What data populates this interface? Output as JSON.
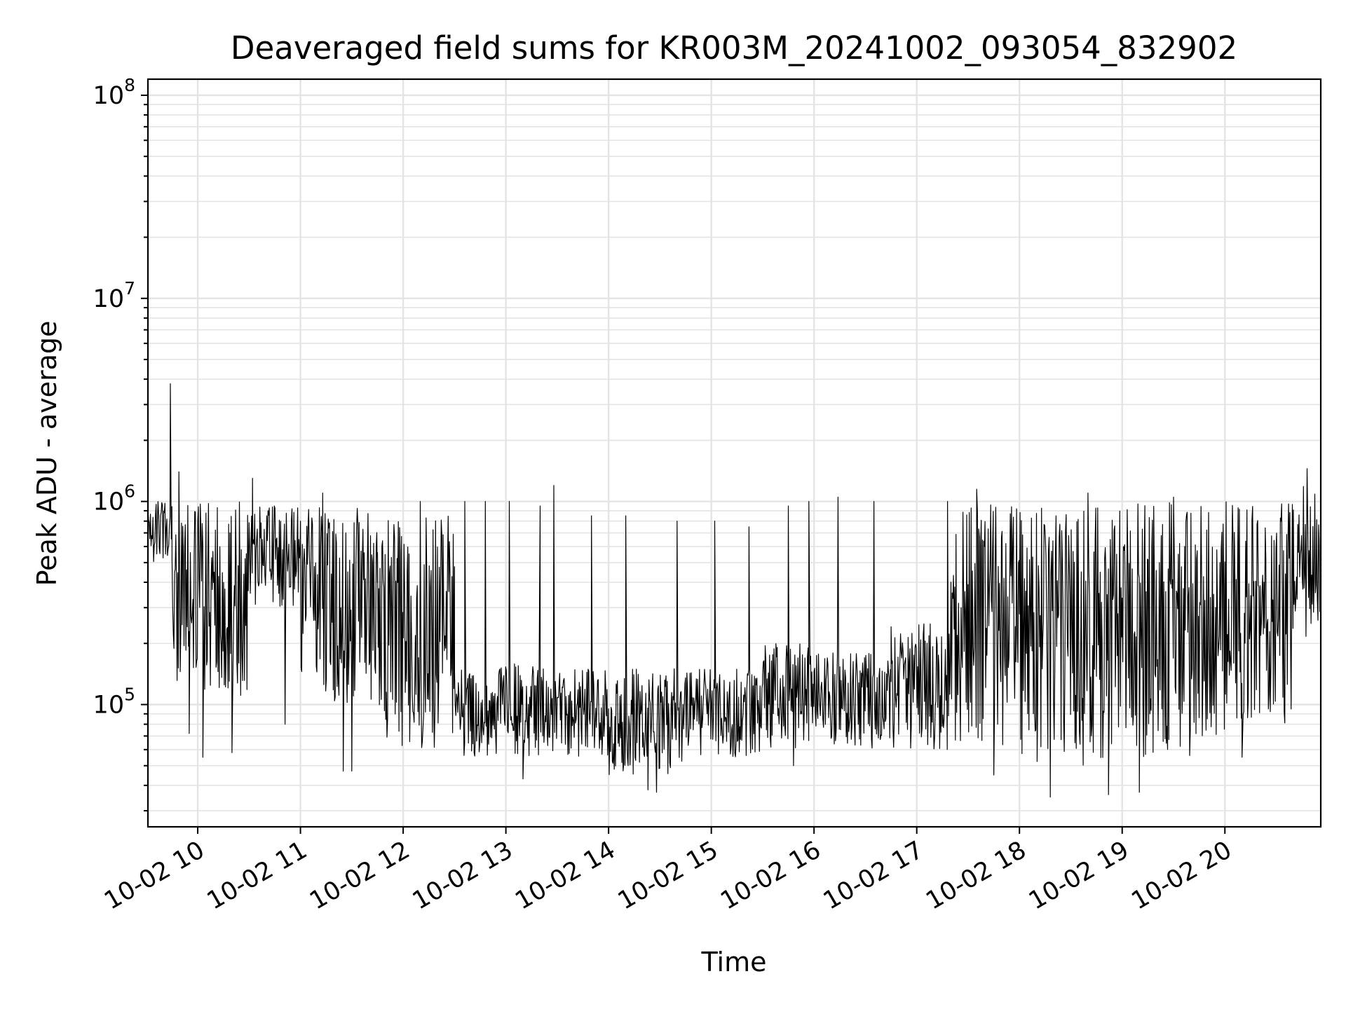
{
  "chart_data": {
    "type": "line",
    "title": "Deaveraged field sums for KR003M_20241002_093054_832902",
    "xlabel": "Time",
    "ylabel": "Peak ADU - average",
    "yscale": "log",
    "ylim": [
      25000,
      120000000
    ],
    "xlim": [
      "2024-10-02 09:30:54",
      "2024-10-02 20:56:00"
    ],
    "x_ticks": [
      "10-02 10",
      "10-02 11",
      "10-02 12",
      "10-02 13",
      "10-02 14",
      "10-02 15",
      "10-02 16",
      "10-02 17",
      "10-02 18",
      "10-02 19",
      "10-02 20"
    ],
    "y_ticks": [
      {
        "value": 100000,
        "base": "10",
        "exp": "5"
      },
      {
        "value": 1000000,
        "base": "10",
        "exp": "6"
      },
      {
        "value": 10000000,
        "base": "10",
        "exp": "7"
      },
      {
        "value": 100000000,
        "base": "10",
        "exp": "8"
      }
    ],
    "grid": true,
    "series": [
      {
        "color": "#000000",
        "segments": [
          {
            "start": "2024-10-02 09:30:54",
            "end": "2024-10-02 09:45:00",
            "low": 500000,
            "high": 1000000,
            "spikes": []
          },
          {
            "start": "2024-10-02 09:45:00",
            "end": "2024-10-02 10:00:00",
            "low": 130000,
            "high": 1000000,
            "spikes": [
              {
                "time": "2024-10-02 09:44:00",
                "value": 3800000
              },
              {
                "time": "2024-10-02 09:49:00",
                "value": 1400000
              },
              {
                "time": "2024-10-02 09:55:00",
                "value": 72000
              }
            ]
          },
          {
            "start": "2024-10-02 10:00:00",
            "end": "2024-10-02 10:30:00",
            "low": 100000,
            "high": 1000000,
            "spikes": [
              {
                "time": "2024-10-02 10:03:00",
                "value": 55000
              },
              {
                "time": "2024-10-02 10:20:00",
                "value": 58000
              },
              {
                "time": "2024-10-02 10:32:00",
                "value": 1300000
              }
            ]
          },
          {
            "start": "2024-10-02 10:30:00",
            "end": "2024-10-02 11:00:00",
            "low": 300000,
            "high": 950000,
            "spikes": [
              {
                "time": "2024-10-02 10:51:00",
                "value": 80000
              }
            ]
          },
          {
            "start": "2024-10-02 11:00:00",
            "end": "2024-10-02 11:45:00",
            "low": 100000,
            "high": 1000000,
            "spikes": [
              {
                "time": "2024-10-02 11:13:00",
                "value": 1100000
              },
              {
                "time": "2024-10-02 11:25:00",
                "value": 47000
              },
              {
                "time": "2024-10-02 11:30:00",
                "value": 47000
              }
            ]
          },
          {
            "start": "2024-10-02 11:45:00",
            "end": "2024-10-02 12:30:00",
            "low": 60000,
            "high": 900000,
            "spikes": [
              {
                "time": "2024-10-02 12:10:00",
                "value": 1000000
              }
            ]
          },
          {
            "start": "2024-10-02 12:30:00",
            "end": "2024-10-02 13:20:00",
            "low": 55000,
            "high": 160000,
            "spikes": [
              {
                "time": "2024-10-02 12:36:00",
                "value": 1000000
              },
              {
                "time": "2024-10-02 12:48:00",
                "value": 1000000
              },
              {
                "time": "2024-10-02 13:02:00",
                "value": 1000000
              },
              {
                "time": "2024-10-02 13:10:00",
                "value": 43000
              },
              {
                "time": "2024-10-02 13:20:00",
                "value": 950000
              }
            ]
          },
          {
            "start": "2024-10-02 13:20:00",
            "end": "2024-10-02 14:00:00",
            "low": 55000,
            "high": 150000,
            "spikes": [
              {
                "time": "2024-10-02 13:28:00",
                "value": 1200000
              },
              {
                "time": "2024-10-02 13:50:00",
                "value": 850000
              }
            ]
          },
          {
            "start": "2024-10-02 14:00:00",
            "end": "2024-10-02 14:45:00",
            "low": 45000,
            "high": 150000,
            "spikes": [
              {
                "time": "2024-10-02 14:10:00",
                "value": 850000
              },
              {
                "time": "2024-10-02 14:23:00",
                "value": 38000
              },
              {
                "time": "2024-10-02 14:28:00",
                "value": 37000
              },
              {
                "time": "2024-10-02 14:40:00",
                "value": 800000
              }
            ]
          },
          {
            "start": "2024-10-02 14:45:00",
            "end": "2024-10-02 15:30:00",
            "low": 55000,
            "high": 150000,
            "spikes": [
              {
                "time": "2024-10-02 15:02:00",
                "value": 800000
              },
              {
                "time": "2024-10-02 15:22:00",
                "value": 750000
              }
            ]
          },
          {
            "start": "2024-10-02 15:30:00",
            "end": "2024-10-02 16:00:00",
            "low": 60000,
            "high": 200000,
            "spikes": [
              {
                "time": "2024-10-02 15:45:00",
                "value": 950000
              },
              {
                "time": "2024-10-02 15:57:00",
                "value": 1000000
              },
              {
                "time": "2024-10-02 15:48:00",
                "value": 50000
              }
            ]
          },
          {
            "start": "2024-10-02 16:00:00",
            "end": "2024-10-02 16:45:00",
            "low": 60000,
            "high": 180000,
            "spikes": [
              {
                "time": "2024-10-02 16:14:00",
                "value": 1050000
              },
              {
                "time": "2024-10-02 16:35:00",
                "value": 1000000
              }
            ]
          },
          {
            "start": "2024-10-02 16:45:00",
            "end": "2024-10-02 17:20:00",
            "low": 60000,
            "high": 250000,
            "spikes": [
              {
                "time": "2024-10-02 17:18:00",
                "value": 1000000
              }
            ]
          },
          {
            "start": "2024-10-02 17:20:00",
            "end": "2024-10-02 18:00:00",
            "low": 60000,
            "high": 1000000,
            "spikes": [
              {
                "time": "2024-10-02 17:35:00",
                "value": 1150000
              },
              {
                "time": "2024-10-02 17:45:00",
                "value": 45000
              }
            ]
          },
          {
            "start": "2024-10-02 18:00:00",
            "end": "2024-10-02 19:00:00",
            "low": 50000,
            "high": 950000,
            "spikes": [
              {
                "time": "2024-10-02 18:18:00",
                "value": 35000
              },
              {
                "time": "2024-10-02 18:40:00",
                "value": 1100000
              },
              {
                "time": "2024-10-02 18:52:00",
                "value": 36000
              }
            ]
          },
          {
            "start": "2024-10-02 19:00:00",
            "end": "2024-10-02 20:00:00",
            "low": 55000,
            "high": 1000000,
            "spikes": [
              {
                "time": "2024-10-02 19:10:00",
                "value": 37000
              },
              {
                "time": "2024-10-02 19:30:00",
                "value": 1050000
              }
            ]
          },
          {
            "start": "2024-10-02 20:00:00",
            "end": "2024-10-02 20:40:00",
            "low": 80000,
            "high": 1000000,
            "spikes": [
              {
                "time": "2024-10-02 20:10:00",
                "value": 55000
              }
            ]
          },
          {
            "start": "2024-10-02 20:40:00",
            "end": "2024-10-02 20:56:00",
            "low": 200000,
            "high": 1200000,
            "spikes": [
              {
                "time": "2024-10-02 20:48:00",
                "value": 1450000
              },
              {
                "time": "2024-10-02 20:55:00",
                "value": 650000
              }
            ]
          }
        ]
      }
    ]
  }
}
